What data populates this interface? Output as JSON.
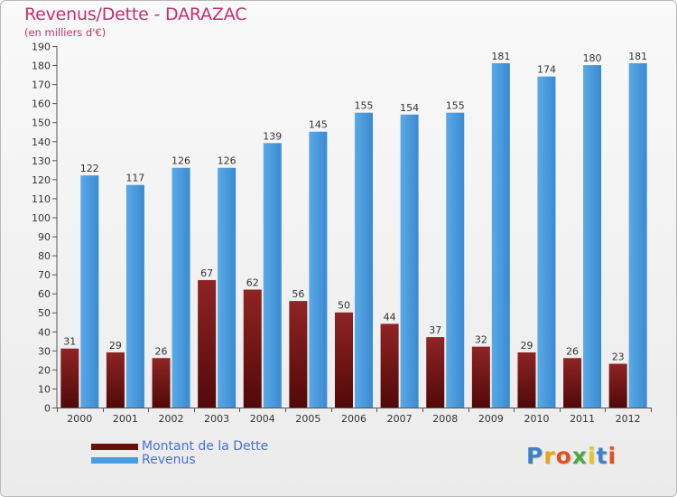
{
  "chart_data": {
    "type": "bar",
    "title": "Revenus/Dette - DARAZAC",
    "subtitle": "(en milliers d'€)",
    "categories": [
      "2000",
      "2001",
      "2002",
      "2003",
      "2004",
      "2005",
      "2006",
      "2007",
      "2008",
      "2009",
      "2010",
      "2011",
      "2012"
    ],
    "series": [
      {
        "name": "Montant de la Dette",
        "color": "#7a1515",
        "values": [
          31,
          29,
          26,
          67,
          62,
          56,
          50,
          44,
          37,
          32,
          29,
          26,
          23
        ]
      },
      {
        "name": "Revenus",
        "color": "#3d8fd6",
        "values": [
          122,
          117,
          126,
          126,
          139,
          145,
          155,
          154,
          155,
          181,
          174,
          180,
          181
        ]
      }
    ],
    "ylim": [
      0,
      190
    ],
    "yticks": [
      0,
      10,
      20,
      30,
      40,
      50,
      60,
      70,
      80,
      90,
      100,
      110,
      120,
      130,
      140,
      150,
      160,
      170,
      180,
      190
    ],
    "grid": false,
    "legend_position": "bottom-left"
  },
  "logo": {
    "letters": [
      "P",
      "r",
      "o",
      "x",
      "i",
      "t",
      "i"
    ],
    "colors": [
      "#3f7fc8",
      "#e8a21c",
      "#e34f1d",
      "#4ca844",
      "#e8c31c",
      "#3f7fc8",
      "#e34f1d"
    ]
  }
}
